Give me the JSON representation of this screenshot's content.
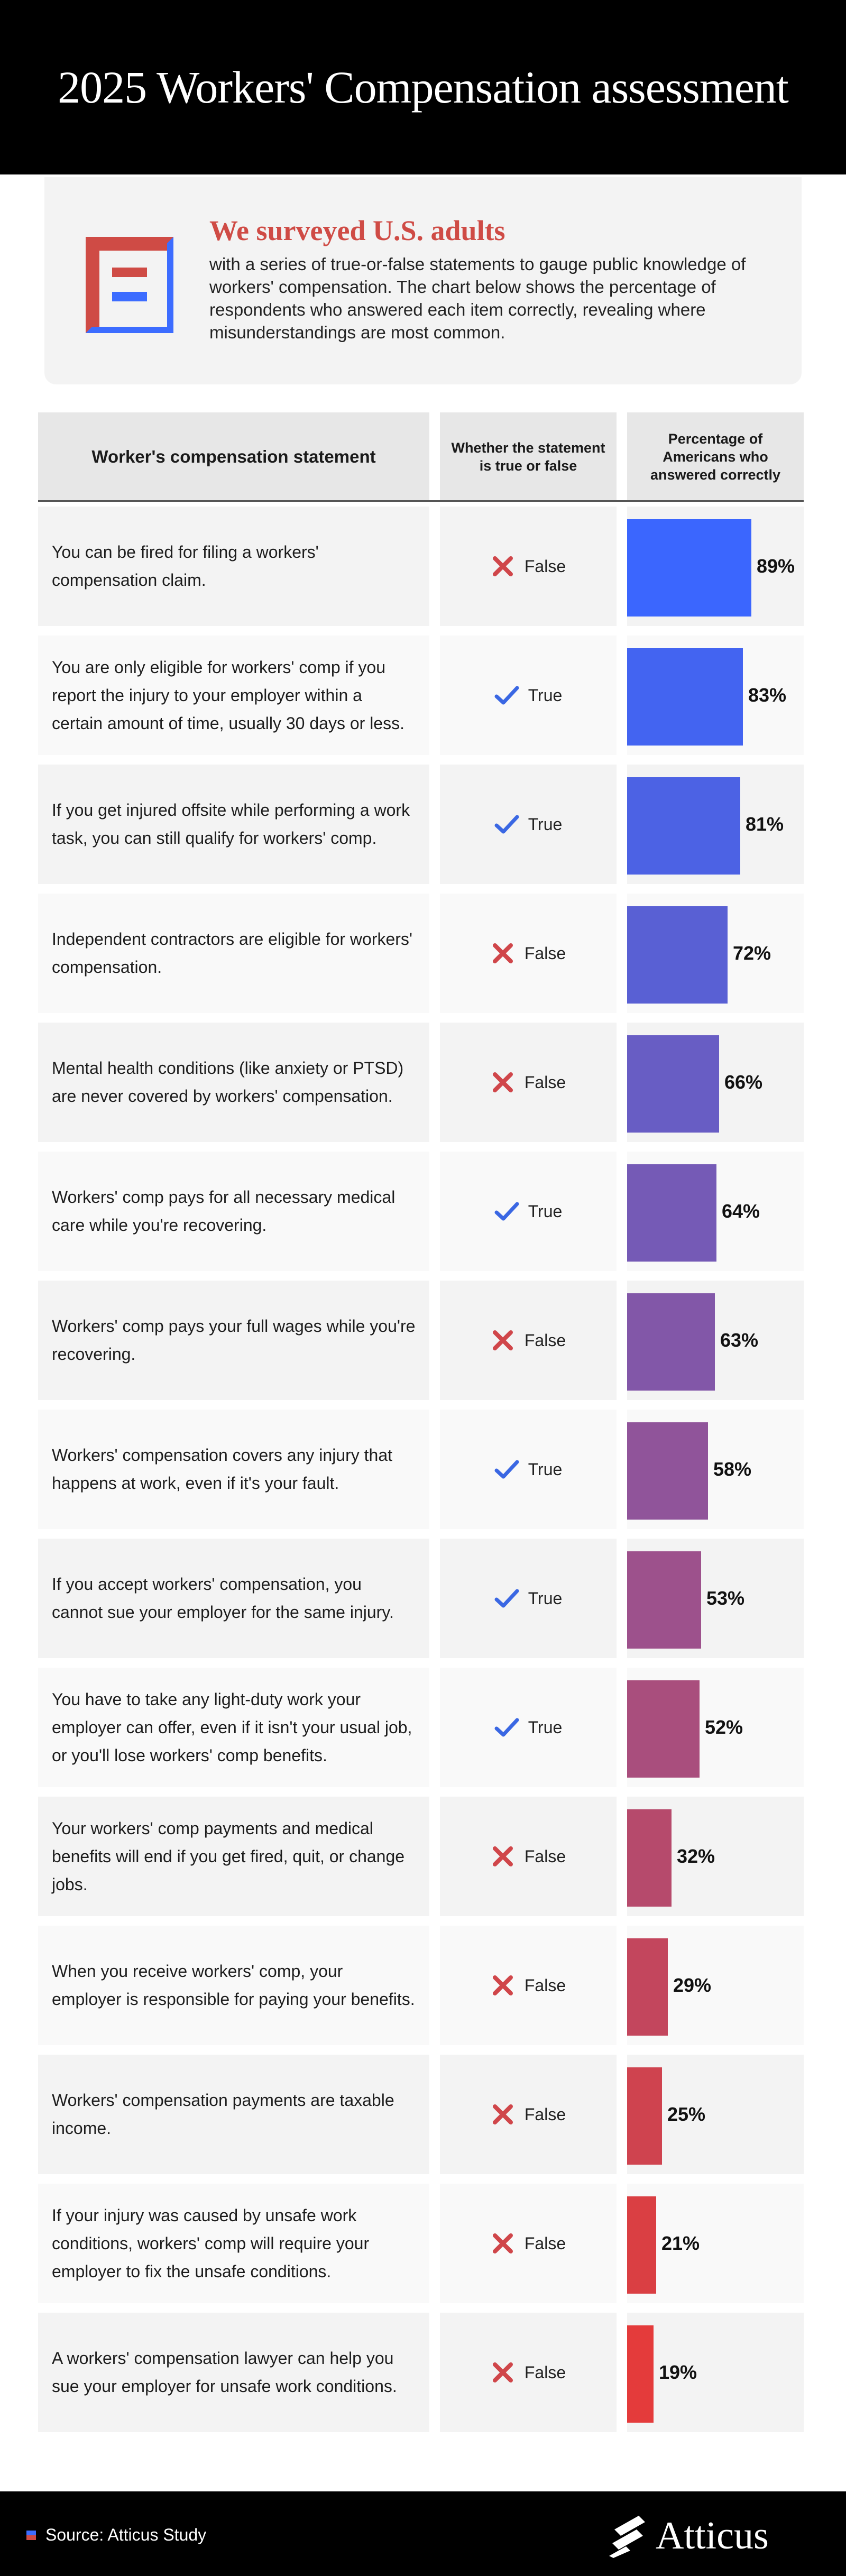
{
  "title": "2025 Workers' Compensation assessment",
  "intro": {
    "heading": "We surveyed U.S. adults",
    "text": "with a series of true-or-false statements to gauge public knowledge of workers' compensation. The chart below shows the percentage of respondents who answered each item correctly, revealing where misunderstandings are most common."
  },
  "columns": {
    "statement": "Worker's compensation statement",
    "truth": "Whether the statement is true or false",
    "percent": "Percentage of Americans who answered correctly"
  },
  "colors": {
    "true_check": "#3a67e3",
    "false_x": "#d0464a",
    "accent_red": "#cf4b45",
    "bar_top": "#3c6cff",
    "bar_bottom": "#e43b3b"
  },
  "chart_data": {
    "type": "bar",
    "orientation": "horizontal",
    "xlim": [
      0,
      100
    ],
    "rows": [
      {
        "statement": "You can be fired for filing a workers' compensation claim.",
        "answer": "False",
        "value": 89,
        "label": "89%",
        "color": "#3b66fe"
      },
      {
        "statement": "You are only eligible for workers' comp if you report the injury to your employer within a certain amount of time, usually 30 days or less.",
        "answer": "True",
        "value": 83,
        "label": "83%",
        "color": "#4364f1"
      },
      {
        "statement": "If you get injured offsite while performing a work task, you can still qualify for workers' comp.",
        "answer": "True",
        "value": 81,
        "label": "81%",
        "color": "#4c62e4"
      },
      {
        "statement": "Independent contractors are eligible for workers' compensation.",
        "answer": "False",
        "value": 72,
        "label": "72%",
        "color": "#5960d4"
      },
      {
        "statement": "Mental health conditions (like anxiety or PTSD) are never covered by workers' compensation.",
        "answer": "False",
        "value": 66,
        "label": "66%",
        "color": "#685dc4"
      },
      {
        "statement": "Workers' comp pays for all necessary medical care while you're recovering.",
        "answer": "True",
        "value": 64,
        "label": "64%",
        "color": "#755ab6"
      },
      {
        "statement": "Workers' comp pays your full wages while you're recovering.",
        "answer": "False",
        "value": 63,
        "label": "63%",
        "color": "#8257a8"
      },
      {
        "statement": "Workers' compensation covers any injury that happens at work, even if it's your fault.",
        "answer": "True",
        "value": 58,
        "label": "58%",
        "color": "#90549a"
      },
      {
        "statement": "If you accept workers' compensation, you cannot sue your employer for the same injury.",
        "answer": "True",
        "value": 53,
        "label": "53%",
        "color": "#9d518c"
      },
      {
        "statement": "You have to take any light-duty work your employer can offer, even if it isn't your usual job, or you'll lose workers' comp benefits.",
        "answer": "True",
        "value": 52,
        "label": "52%",
        "color": "#a94e7d"
      },
      {
        "statement": "Your workers' comp payments and medical benefits will end if you get fired, quit, or change jobs.",
        "answer": "False",
        "value": 32,
        "label": "32%",
        "color": "#b64a6c"
      },
      {
        "statement": "When you receive workers' comp, your employer is responsible for paying your benefits.",
        "answer": "False",
        "value": 29,
        "label": "29%",
        "color": "#c3465d"
      },
      {
        "statement": "Workers' compensation payments are taxable income.",
        "answer": "False",
        "value": 25,
        "label": "25%",
        "color": "#cf434f"
      },
      {
        "statement": "If your injury was caused by unsafe work conditions, workers' comp will require your employer to fix the unsafe conditions.",
        "answer": "False",
        "value": 21,
        "label": "21%",
        "color": "#da3f43"
      },
      {
        "statement": "A workers' compensation lawyer can help you sue your employer for unsafe work conditions.",
        "answer": "False",
        "value": 19,
        "label": "19%",
        "color": "#e43b3b"
      }
    ]
  },
  "footer": {
    "source": "Source: Atticus Study",
    "brand": "Atticus"
  }
}
